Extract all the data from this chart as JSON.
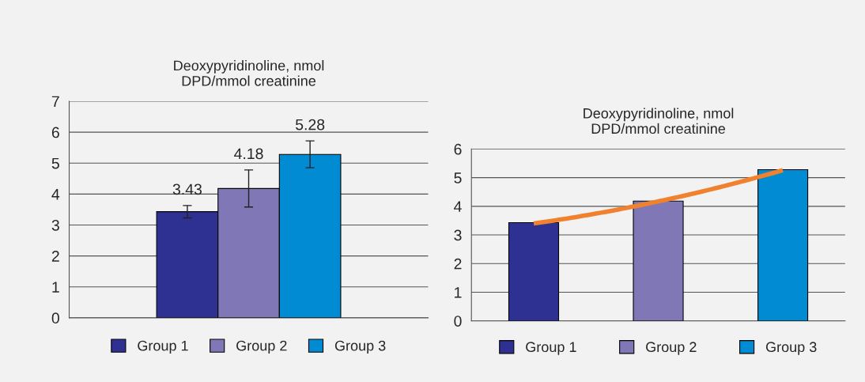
{
  "chart_data": [
    {
      "type": "bar",
      "title": "Deoxypyridinoline, nmol\nDPD/mmol creatinine",
      "categories": [
        null
      ],
      "series": [
        {
          "name": "Group 1",
          "color": "#2e3192",
          "values": [
            3.43
          ],
          "errors": [
            0.2
          ]
        },
        {
          "name": "Group 2",
          "color": "#7f77b6",
          "values": [
            4.18
          ],
          "errors": [
            0.6
          ]
        },
        {
          "name": "Group 3",
          "color": "#008bd2",
          "values": [
            5.28
          ],
          "errors": [
            [
              4.85,
              5.72
            ]
          ]
        }
      ],
      "ylim": [
        0,
        7
      ],
      "yticks": [
        0,
        1,
        2,
        3,
        4,
        5,
        6,
        7
      ],
      "grid": "y",
      "legend": "bottom",
      "data_labels": true
    },
    {
      "type": "bar",
      "title": "Deoxypyridinoline, nmol\nDPD/mmol creatinine",
      "categories": [
        null,
        null,
        null
      ],
      "series": [
        {
          "name": "Group 1",
          "color": "#2e3192",
          "values": [
            3.43,
            null,
            null
          ]
        },
        {
          "name": "Group 2",
          "color": "#7f77b6",
          "values": [
            null,
            4.18,
            null
          ]
        },
        {
          "name": "Group 3",
          "color": "#008bd2",
          "values": [
            null,
            null,
            5.28
          ]
        },
        {
          "type": "line",
          "color": "#f0812f",
          "values": [
            3.4,
            4.17,
            5.26
          ]
        }
      ],
      "ylim": [
        0,
        6
      ],
      "yticks": [
        0,
        1,
        2,
        3,
        4,
        5,
        6
      ],
      "grid": "y",
      "legend": "bottom"
    }
  ]
}
